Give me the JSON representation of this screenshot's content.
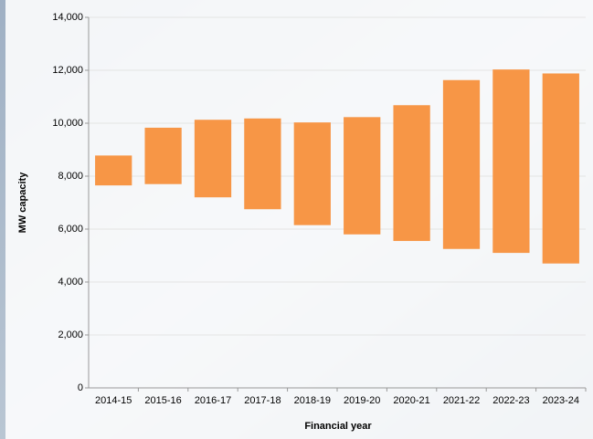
{
  "chart_data": {
    "type": "rangebar",
    "xlabel": "Financial year",
    "ylabel": "MW capacity",
    "categories": [
      "2014-15",
      "2015-16",
      "2016-17",
      "2017-18",
      "2018-19",
      "2019-20",
      "2020-21",
      "2021-22",
      "2022-23",
      "2023-24"
    ],
    "low": [
      7650,
      7700,
      7200,
      6750,
      6150,
      5800,
      5550,
      5250,
      5100,
      4700
    ],
    "high": [
      8780,
      9830,
      10130,
      10180,
      10030,
      10230,
      10680,
      11630,
      12030,
      11880
    ],
    "color": "#f79646",
    "ylim": [
      0,
      14000
    ],
    "yticks": [
      0,
      {
        "value": 2000,
        "label": "2,000"
      },
      {
        "value": 4000,
        "label": "4,000"
      },
      {
        "value": 6000,
        "label": "6,000"
      },
      {
        "value": 8000,
        "label": "8,000"
      },
      {
        "value": 10000,
        "label": "10,000"
      },
      {
        "value": 12000,
        "label": "12,000"
      },
      {
        "value": 14000,
        "label": "14,000"
      }
    ],
    "grid": true
  }
}
